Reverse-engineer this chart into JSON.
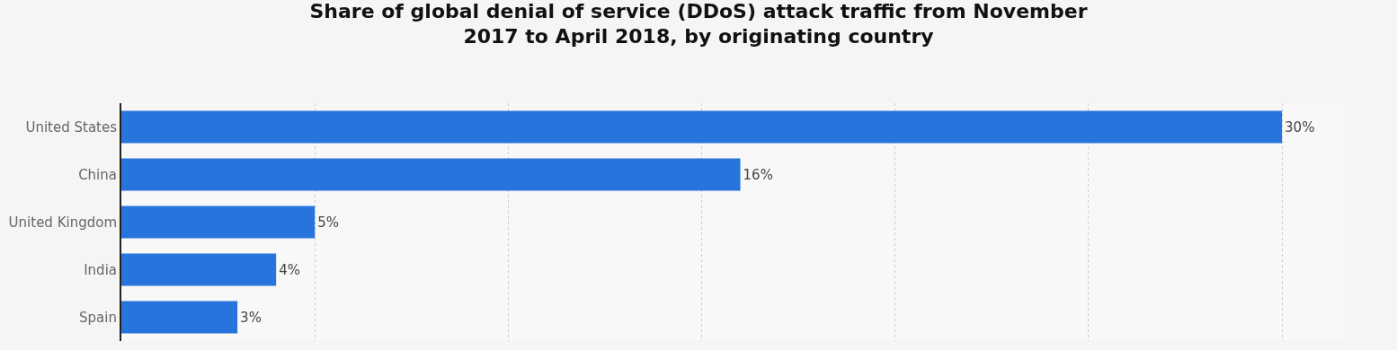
{
  "chart_data": {
    "type": "bar",
    "orientation": "horizontal",
    "title": "Share of global denial of service (DDoS) attack traffic from November 2017 to April 2018, by originating country",
    "categories": [
      "United States",
      "China",
      "United Kingdom",
      "India",
      "Spain"
    ],
    "values": [
      30,
      16,
      5,
      4,
      3
    ],
    "value_labels": [
      "30%",
      "16%",
      "5%",
      "4%",
      "3%"
    ],
    "color": "#2775dc",
    "grid": "x",
    "tick_labels": "y"
  }
}
